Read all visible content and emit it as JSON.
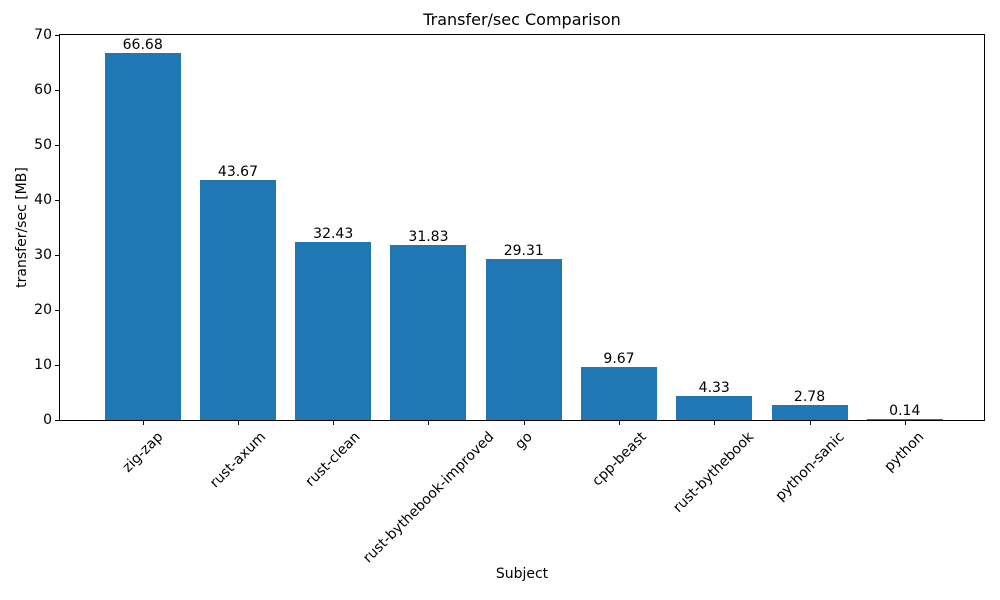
{
  "chart_data": {
    "type": "bar",
    "title": "Transfer/sec Comparison",
    "xlabel": "Subject",
    "ylabel": "transfer/sec [MB]",
    "categories": [
      "zig-zap",
      "rust-axum",
      "rust-clean",
      "rust-bythebook-improved",
      "go",
      "cpp-beast",
      "rust-bythebook",
      "python-sanic",
      "python"
    ],
    "values": [
      66.68,
      43.67,
      32.43,
      31.83,
      29.31,
      9.67,
      4.33,
      2.78,
      0.14
    ],
    "bar_labels": [
      "66.68",
      "43.67",
      "32.43",
      "31.83",
      "29.31",
      "9.67",
      "4.33",
      "2.78",
      "0.14"
    ],
    "ylim": [
      0,
      70
    ],
    "yticks": [
      0,
      10,
      20,
      30,
      40,
      50,
      60,
      70
    ],
    "x_tick_rotation_deg": 45,
    "grid": false,
    "legend": null,
    "bar_color": "#1f77b4",
    "text_color": "#000000",
    "background_color": "#ffffff"
  }
}
